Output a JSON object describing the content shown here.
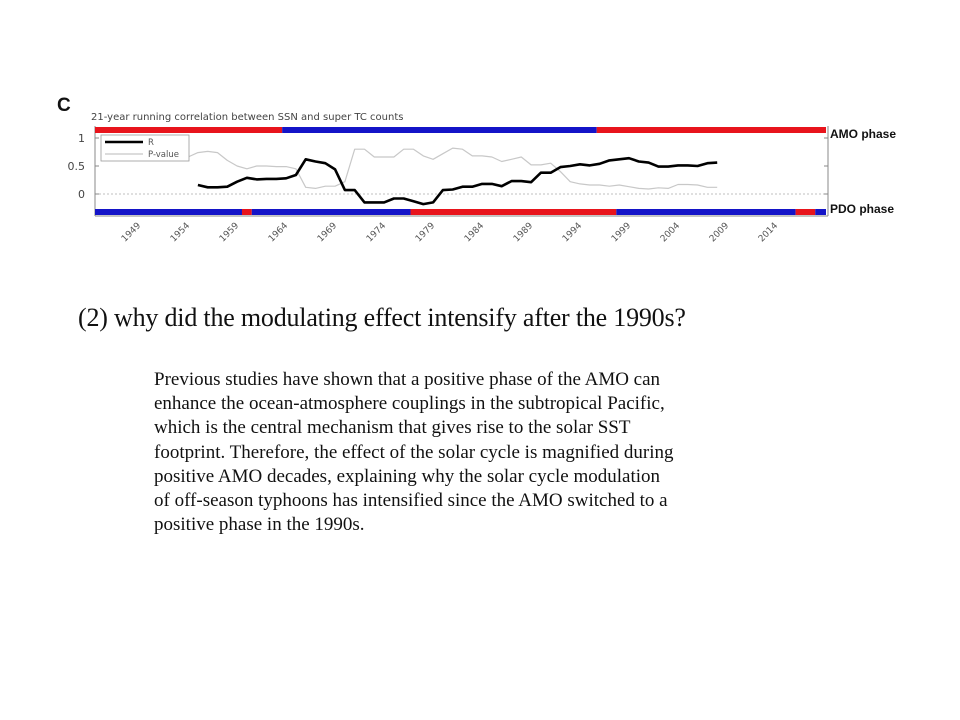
{
  "slide": {
    "question": "(2) why did the modulating effect intensify after the 1990s?",
    "paragraph_lines": [
      "Previous studies have shown that a positive phase of the AMO can",
      "enhance the ocean-atmosphere couplings in the subtropical Pacific,",
      "which is the central mechanism that gives rise to the solar SST",
      "footprint. Therefore, the effect of the solar cycle is magnified during",
      "positive AMO decades, explaining why the solar cycle modulation",
      "of off-season typhoons has intensified since the AMO switched to a",
      "positive phase in the 1990s."
    ]
  },
  "chart_data": {
    "type": "line",
    "panel_label": "C",
    "title": "21-year running correlation between SSN and super TC counts",
    "xlabel": "",
    "ylabel": "",
    "xlim": [
      1944.5,
      2019.1
    ],
    "ylim": [
      -0.35,
      1.15
    ],
    "x_ticks": [
      1949,
      1954,
      1959,
      1964,
      1969,
      1974,
      1979,
      1984,
      1989,
      1994,
      1999,
      2004,
      2009,
      2014
    ],
    "y_ticks": [
      {
        "value": 1,
        "label": "1"
      },
      {
        "value": 0.5,
        "label": "0.5"
      },
      {
        "value": 0,
        "label": "0"
      }
    ],
    "zero_line": "dashed",
    "legend": {
      "position": "top-left",
      "entries": [
        "R",
        "P-value"
      ]
    },
    "colors": {
      "R": "#000000",
      "P-value": "#c8c8c8",
      "positive_phase": "#e8141c",
      "negative_phase": "#1414c8"
    },
    "series": [
      {
        "name": "R",
        "x": [
          1955,
          1956,
          1957,
          1958,
          1959,
          1960,
          1961,
          1962,
          1963,
          1964,
          1965,
          1966,
          1967,
          1968,
          1969,
          1970,
          1971,
          1972,
          1973,
          1974,
          1975,
          1976,
          1977,
          1978,
          1979,
          1980,
          1981,
          1982,
          1983,
          1984,
          1985,
          1986,
          1987,
          1988,
          1989,
          1990,
          1991,
          1992,
          1993,
          1994,
          1995,
          1996,
          1997,
          1998,
          1999,
          2000,
          2001,
          2002,
          2003,
          2004,
          2005,
          2006,
          2007,
          2008
        ],
        "values": [
          0.16,
          0.12,
          0.12,
          0.13,
          0.22,
          0.29,
          0.26,
          0.27,
          0.27,
          0.28,
          0.34,
          0.62,
          0.58,
          0.55,
          0.44,
          0.07,
          0.07,
          -0.15,
          -0.15,
          -0.15,
          -0.08,
          -0.08,
          -0.13,
          -0.18,
          -0.15,
          0.07,
          0.08,
          0.13,
          0.13,
          0.18,
          0.18,
          0.14,
          0.23,
          0.23,
          0.21,
          0.38,
          0.38,
          0.48,
          0.5,
          0.53,
          0.51,
          0.54,
          0.6,
          0.62,
          0.64,
          0.58,
          0.56,
          0.49,
          0.49,
          0.51,
          0.51,
          0.5,
          0.55,
          0.56
        ]
      },
      {
        "name": "P-value",
        "x": [
          1954,
          1955,
          1956,
          1957,
          1958,
          1959,
          1960,
          1961,
          1962,
          1963,
          1964,
          1965,
          1966,
          1967,
          1968,
          1969,
          1970,
          1971,
          1972,
          1973,
          1974,
          1975,
          1976,
          1977,
          1978,
          1979,
          1980,
          1981,
          1982,
          1983,
          1984,
          1985,
          1986,
          1987,
          1988,
          1989,
          1990,
          1991,
          1992,
          1993,
          1994,
          1995,
          1996,
          1997,
          1998,
          1999,
          2000,
          2001,
          2002,
          2003,
          2004,
          2005,
          2006,
          2007,
          2008
        ],
        "values": [
          0.66,
          0.74,
          0.76,
          0.74,
          0.6,
          0.5,
          0.45,
          0.5,
          0.5,
          0.49,
          0.49,
          0.45,
          0.12,
          0.1,
          0.14,
          0.14,
          0.22,
          0.8,
          0.8,
          0.66,
          0.66,
          0.66,
          0.8,
          0.8,
          0.68,
          0.62,
          0.72,
          0.82,
          0.8,
          0.68,
          0.68,
          0.66,
          0.58,
          0.62,
          0.66,
          0.52,
          0.52,
          0.55,
          0.4,
          0.22,
          0.18,
          0.16,
          0.16,
          0.14,
          0.16,
          0.13,
          0.1,
          0.09,
          0.11,
          0.1,
          0.17,
          0.17,
          0.16,
          0.12,
          0.12
        ]
      }
    ],
    "phase_bars": [
      {
        "name": "AMO phase",
        "position": "top",
        "segments": [
          {
            "start": 1944.5,
            "end": 1963.6,
            "phase": "positive"
          },
          {
            "start": 1963.6,
            "end": 1995.7,
            "phase": "negative"
          },
          {
            "start": 1995.7,
            "end": 2019.1,
            "phase": "positive"
          }
        ]
      },
      {
        "name": "PDO phase",
        "position": "bottom",
        "segments": [
          {
            "start": 1944.5,
            "end": 1959.5,
            "phase": "negative"
          },
          {
            "start": 1959.5,
            "end": 1960.5,
            "phase": "positive"
          },
          {
            "start": 1960.5,
            "end": 1976.7,
            "phase": "negative"
          },
          {
            "start": 1976.7,
            "end": 1997.7,
            "phase": "positive"
          },
          {
            "start": 1997.7,
            "end": 2016.0,
            "phase": "negative"
          },
          {
            "start": 2016.0,
            "end": 2018.0,
            "phase": "positive"
          },
          {
            "start": 2018.0,
            "end": 2019.1,
            "phase": "negative"
          }
        ]
      }
    ]
  }
}
